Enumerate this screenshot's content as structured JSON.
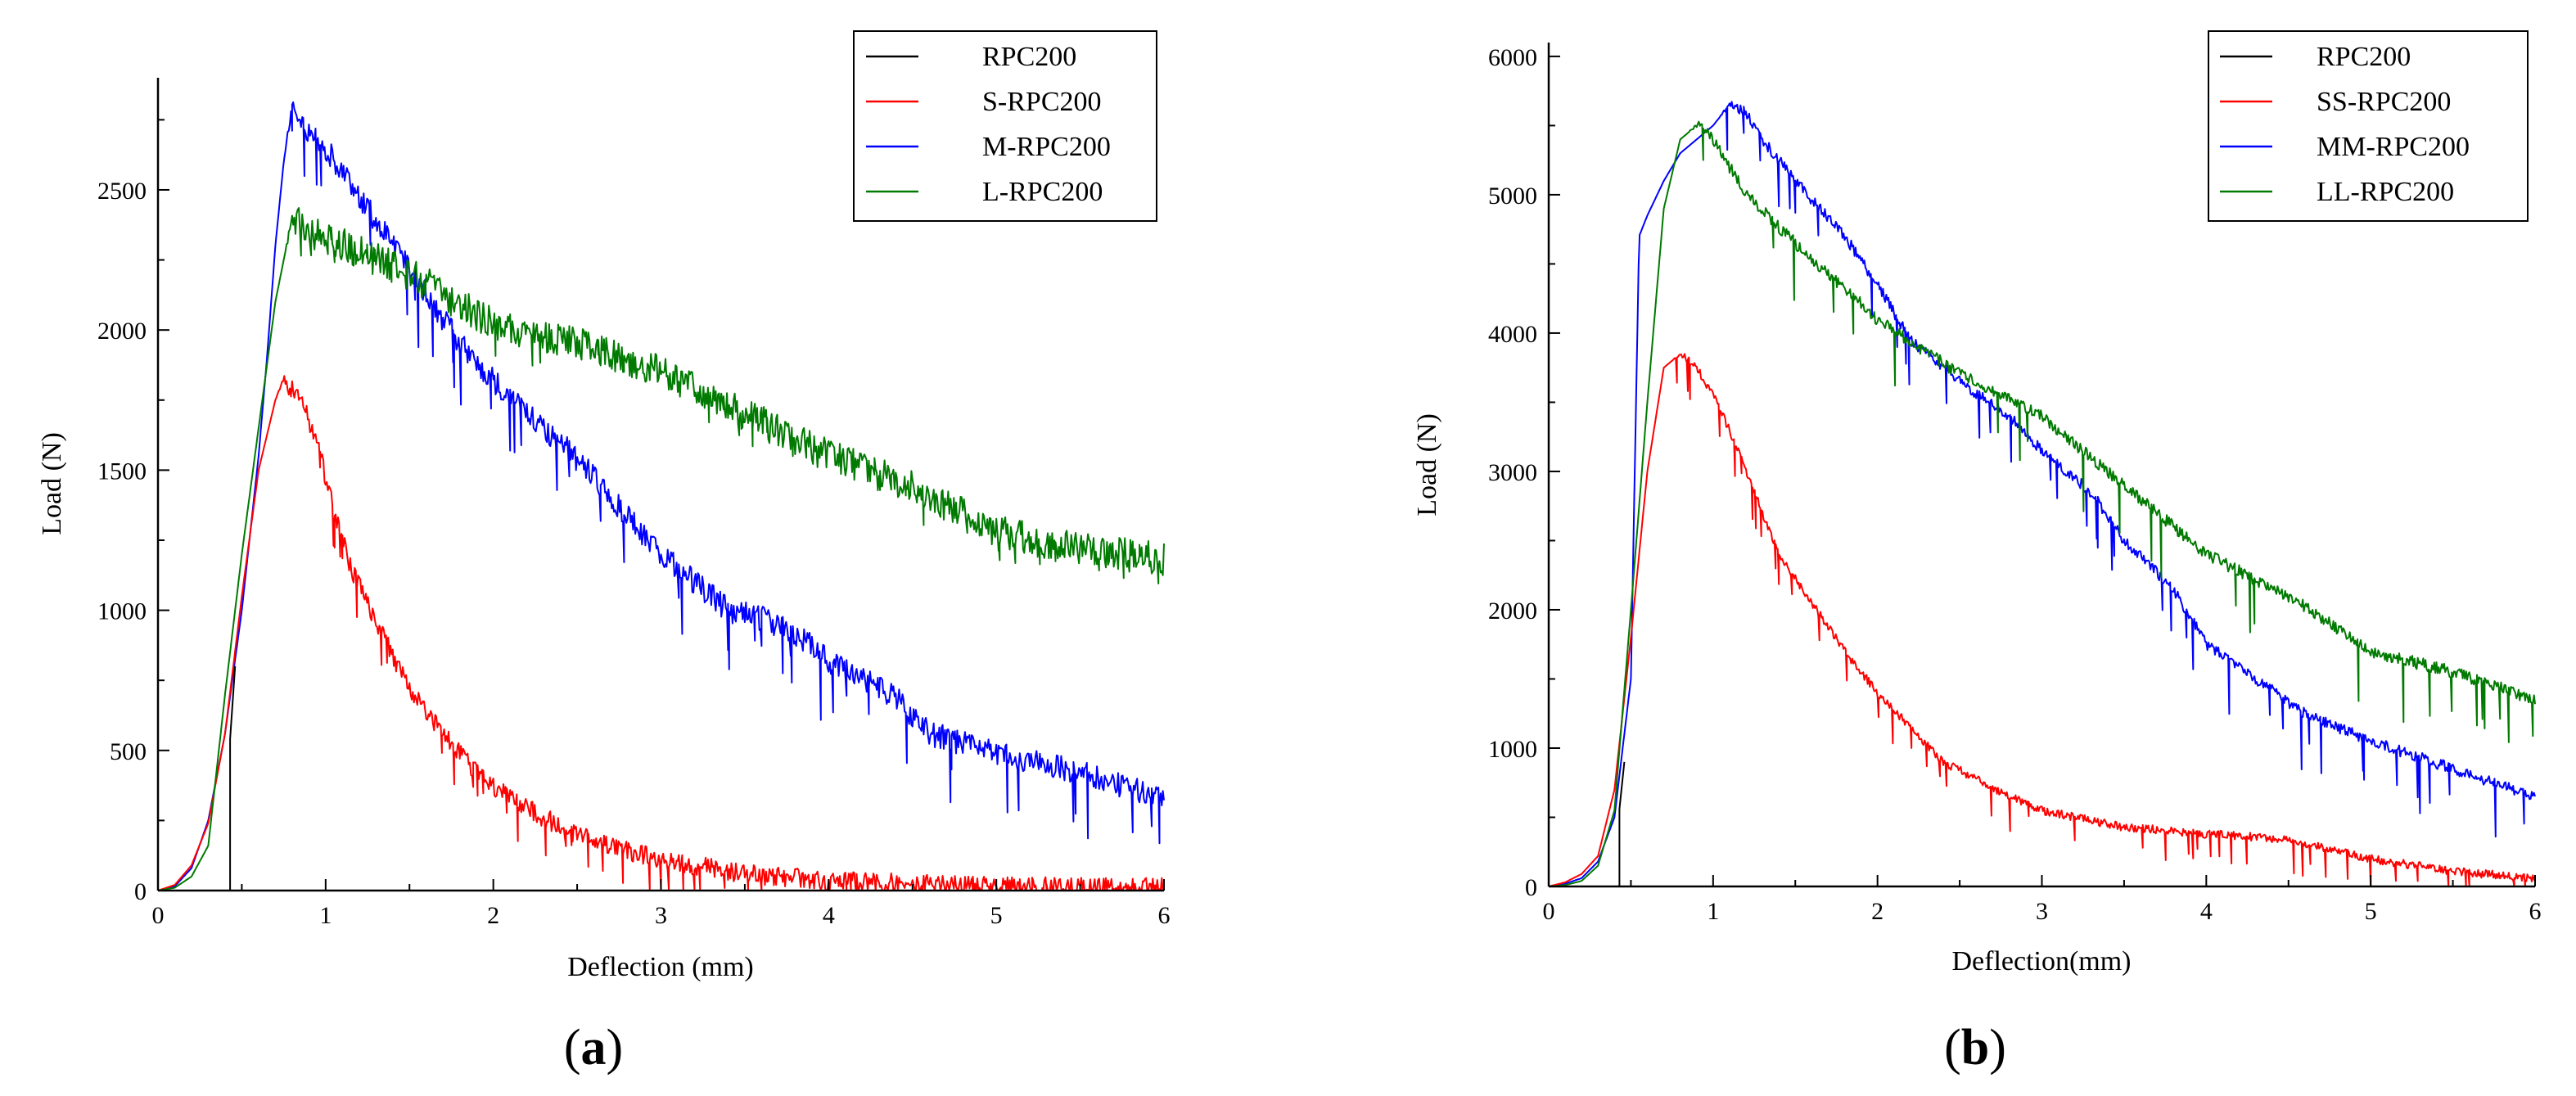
{
  "charts": [
    {
      "type": "line",
      "panel_label_open": "(",
      "panel_label_letter": "a",
      "panel_label_close": ")",
      "xlabel": "Deflection (mm)",
      "ylabel": "Load (N)",
      "xlim": [
        0,
        6
      ],
      "ylim": [
        0,
        2900
      ],
      "xticks": [
        0,
        1,
        2,
        3,
        4,
        5,
        6
      ],
      "yticks": [
        0,
        500,
        1000,
        1500,
        2000,
        2500
      ],
      "legend_position": "top-right",
      "series": [
        {
          "name": "RPC200",
          "color": "#000000",
          "profile": "rpc",
          "pts": [
            [
              0,
              0
            ],
            [
              0.43,
              0
            ],
            [
              0.43,
              540
            ],
            [
              0.46,
              800
            ]
          ]
        },
        {
          "name": "S-RPC200",
          "color": "#ff0000",
          "profile": "softening",
          "pts": [
            [
              0,
              0
            ],
            [
              0.1,
              20
            ],
            [
              0.2,
              90
            ],
            [
              0.3,
              240
            ],
            [
              0.4,
              560
            ],
            [
              0.5,
              1050
            ],
            [
              0.6,
              1500
            ],
            [
              0.7,
              1750
            ],
            [
              0.75,
              1820
            ],
            [
              0.85,
              1760
            ],
            [
              0.95,
              1600
            ],
            [
              1.05,
              1350
            ],
            [
              1.15,
              1150
            ],
            [
              1.3,
              960
            ],
            [
              1.5,
              720
            ],
            [
              1.7,
              560
            ],
            [
              1.9,
              420
            ],
            [
              2.1,
              330
            ],
            [
              2.3,
              260
            ],
            [
              2.5,
              200
            ],
            [
              2.7,
              160
            ],
            [
              3,
              110
            ],
            [
              3.5,
              60
            ],
            [
              4,
              35
            ],
            [
              5,
              15
            ],
            [
              6,
              10
            ]
          ],
          "noise": 70,
          "sawtooth": 130
        },
        {
          "name": "M-RPC200",
          "color": "#0000ff",
          "profile": "softening",
          "pts": [
            [
              0,
              0
            ],
            [
              0.1,
              15
            ],
            [
              0.2,
              80
            ],
            [
              0.3,
              250
            ],
            [
              0.4,
              560
            ],
            [
              0.5,
              1000
            ],
            [
              0.6,
              1550
            ],
            [
              0.65,
              1900
            ],
            [
              0.7,
              2300
            ],
            [
              0.75,
              2600
            ],
            [
              0.8,
              2800
            ],
            [
              0.9,
              2700
            ],
            [
              1,
              2650
            ],
            [
              1.2,
              2480
            ],
            [
              1.4,
              2300
            ],
            [
              1.6,
              2130
            ],
            [
              1.8,
              1950
            ],
            [
              2,
              1820
            ],
            [
              2.2,
              1700
            ],
            [
              2.4,
              1600
            ],
            [
              2.6,
              1480
            ],
            [
              2.8,
              1330
            ],
            [
              3,
              1200
            ],
            [
              3.2,
              1100
            ],
            [
              3.4,
              1000
            ],
            [
              3.6,
              970
            ],
            [
              3.8,
              920
            ],
            [
              4,
              820
            ],
            [
              4.2,
              760
            ],
            [
              4.4,
              690
            ],
            [
              4.6,
              560
            ],
            [
              5,
              490
            ],
            [
              5.5,
              420
            ],
            [
              6,
              330
            ]
          ],
          "noise": 90,
          "sawtooth": 220
        },
        {
          "name": "L-RPC200",
          "color": "#007a00",
          "profile": "softening",
          "pts": [
            [
              0,
              0
            ],
            [
              0.1,
              10
            ],
            [
              0.2,
              50
            ],
            [
              0.3,
              160
            ],
            [
              0.4,
              700
            ],
            [
              0.5,
              1200
            ],
            [
              0.6,
              1650
            ],
            [
              0.7,
              2100
            ],
            [
              0.8,
              2400
            ],
            [
              0.9,
              2350
            ],
            [
              1,
              2330
            ],
            [
              1.2,
              2280
            ],
            [
              1.5,
              2200
            ],
            [
              2,
              2020
            ],
            [
              2.5,
              1950
            ],
            [
              3,
              1850
            ],
            [
              3.5,
              1700
            ],
            [
              4,
              1550
            ],
            [
              4.5,
              1440
            ],
            [
              5,
              1280
            ],
            [
              5.5,
              1220
            ],
            [
              6,
              1180
            ]
          ],
          "noise": 120,
          "sawtooth": 70
        }
      ]
    },
    {
      "type": "line",
      "panel_label_open": "(",
      "panel_label_letter": "b",
      "panel_label_close": ")",
      "xlabel": "Deflection(mm)",
      "ylabel": "Load (N)",
      "xlim": [
        0,
        6
      ],
      "ylim": [
        0,
        6100
      ],
      "xticks": [
        0,
        1,
        2,
        3,
        4,
        5,
        6
      ],
      "yticks": [
        0,
        1000,
        2000,
        3000,
        4000,
        5000,
        6000
      ],
      "legend_position": "top-right",
      "series": [
        {
          "name": "RPC200",
          "color": "#000000",
          "profile": "rpc",
          "pts": [
            [
              0,
              0
            ],
            [
              0.43,
              0
            ],
            [
              0.43,
              560
            ],
            [
              0.46,
              900
            ]
          ]
        },
        {
          "name": "SS-RPC200",
          "color": "#ff0000",
          "profile": "softening",
          "pts": [
            [
              0,
              0
            ],
            [
              0.1,
              30
            ],
            [
              0.2,
              90
            ],
            [
              0.3,
              220
            ],
            [
              0.4,
              700
            ],
            [
              0.5,
              1800
            ],
            [
              0.6,
              3000
            ],
            [
              0.7,
              3750
            ],
            [
              0.8,
              3850
            ],
            [
              0.9,
              3750
            ],
            [
              1,
              3550
            ],
            [
              1.1,
              3300
            ],
            [
              1.2,
              3000
            ],
            [
              1.3,
              2700
            ],
            [
              1.4,
              2400
            ],
            [
              1.6,
              2050
            ],
            [
              1.8,
              1700
            ],
            [
              2,
              1400
            ],
            [
              2.2,
              1150
            ],
            [
              2.4,
              900
            ],
            [
              2.6,
              780
            ],
            [
              2.8,
              650
            ],
            [
              3,
              550
            ],
            [
              3.2,
              500
            ],
            [
              3.5,
              430
            ],
            [
              3.8,
              400
            ],
            [
              4,
              380
            ],
            [
              4.5,
              340
            ],
            [
              5,
              200
            ],
            [
              5.5,
              110
            ],
            [
              6,
              60
            ]
          ],
          "noise": 60,
          "sawtooth": 250
        },
        {
          "name": "MM-RPC200",
          "color": "#0000ff",
          "profile": "softening",
          "pts": [
            [
              0,
              0
            ],
            [
              0.1,
              20
            ],
            [
              0.2,
              60
            ],
            [
              0.3,
              180
            ],
            [
              0.4,
              500
            ],
            [
              0.5,
              1500
            ],
            [
              0.55,
              4700
            ],
            [
              0.6,
              4850
            ],
            [
              0.7,
              5100
            ],
            [
              0.8,
              5300
            ],
            [
              0.9,
              5400
            ],
            [
              1,
              5500
            ],
            [
              1.1,
              5650
            ],
            [
              1.2,
              5600
            ],
            [
              1.3,
              5400
            ],
            [
              1.5,
              5100
            ],
            [
              1.8,
              4700
            ],
            [
              2,
              4350
            ],
            [
              2.2,
              3950
            ],
            [
              2.5,
              3650
            ],
            [
              2.8,
              3400
            ],
            [
              3,
              3150
            ],
            [
              3.3,
              2850
            ],
            [
              3.5,
              2500
            ],
            [
              3.8,
              2150
            ],
            [
              4,
              1750
            ],
            [
              4.3,
              1500
            ],
            [
              4.6,
              1250
            ],
            [
              5,
              1050
            ],
            [
              5.5,
              850
            ],
            [
              6,
              650
            ]
          ],
          "noise": 80,
          "sawtooth": 400
        },
        {
          "name": "LL-RPC200",
          "color": "#007a00",
          "profile": "softening",
          "pts": [
            [
              0,
              0
            ],
            [
              0.1,
              10
            ],
            [
              0.2,
              40
            ],
            [
              0.3,
              150
            ],
            [
              0.4,
              550
            ],
            [
              0.5,
              2000
            ],
            [
              0.6,
              3500
            ],
            [
              0.7,
              4900
            ],
            [
              0.8,
              5400
            ],
            [
              0.9,
              5500
            ],
            [
              1,
              5400
            ],
            [
              1.2,
              5000
            ],
            [
              1.5,
              4650
            ],
            [
              2,
              4100
            ],
            [
              2.5,
              3700
            ],
            [
              3,
              3400
            ],
            [
              3.5,
              2900
            ],
            [
              4,
              2400
            ],
            [
              4.5,
              2100
            ],
            [
              5,
              1700
            ],
            [
              5.5,
              1550
            ],
            [
              6,
              1350
            ]
          ],
          "noise": 90,
          "sawtooth": 450
        }
      ]
    }
  ]
}
